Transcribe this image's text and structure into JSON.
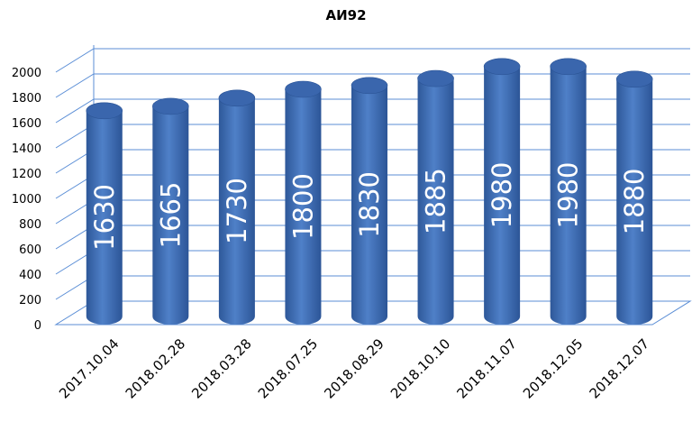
{
  "chart_data": {
    "type": "bar",
    "title": "АИ92",
    "xlabel": "",
    "ylabel": "",
    "categories": [
      "2017.10.04",
      "2018.02.28",
      "2018.03.28",
      "2018.07.25",
      "2018.08.29",
      "2018.10.10",
      "2018.11.07",
      "2018.12.05",
      "2018.12.07"
    ],
    "values": [
      1630,
      1665,
      1730,
      1800,
      1830,
      1885,
      1980,
      1980,
      1880
    ],
    "data_labels": [
      "1630",
      "1665",
      "1730",
      "1800",
      "1830",
      "1885",
      "1980",
      "1980",
      "1880"
    ],
    "yticks": [
      "0",
      "200",
      "400",
      "600",
      "800",
      "1000",
      "1200",
      "1400",
      "1600",
      "1800",
      "2000"
    ],
    "ylim": [
      0,
      2000
    ],
    "bar_shape": "3d-cylinder",
    "grid": true,
    "legend": "none",
    "colors": {
      "bar": "#4a79c0",
      "bar_light": "#6f9ad6",
      "bar_dark": "#2c5597",
      "bar_top": "#3a66ad",
      "gridline": "#5b8ed6",
      "data_label": "#ffffff"
    }
  }
}
